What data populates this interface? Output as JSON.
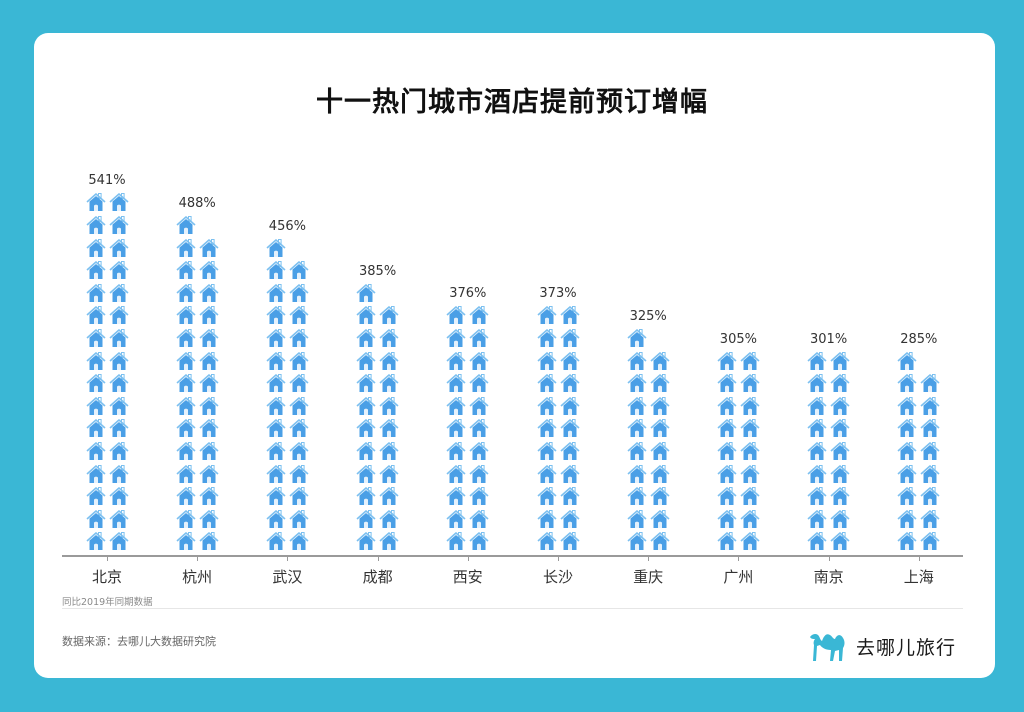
{
  "page": {
    "title": "十一热门城市酒店提前预订增幅",
    "note": "同比2019年同期数据",
    "source": "数据来源：去哪儿大数据研究院",
    "brand": "去哪儿旅行",
    "colors": {
      "background": "#3ab7d5",
      "card": "#ffffff",
      "house": "#4a9fe6",
      "house_roof": "#7cc0f0",
      "axis": "#9a9a9a",
      "logo_camel": "#3ab7d5"
    }
  },
  "chart_data": {
    "type": "bar",
    "subtype": "pictogram",
    "title": "十一热门城市酒店提前预订增幅",
    "xlabel": "",
    "ylabel": "",
    "categories": [
      "北京",
      "杭州",
      "武汉",
      "成都",
      "西安",
      "长沙",
      "重庆",
      "广州",
      "南京",
      "上海"
    ],
    "values": [
      541,
      488,
      456,
      385,
      376,
      373,
      325,
      305,
      301,
      285
    ],
    "value_labels": [
      "541%",
      "488%",
      "456%",
      "385%",
      "376%",
      "373%",
      "325%",
      "305%",
      "301%",
      "285%"
    ],
    "icon_counts": [
      32,
      29,
      27,
      23,
      22,
      22,
      19,
      18,
      18,
      17
    ],
    "icon": "house-icon",
    "unit": "%",
    "grid": false,
    "legend": null,
    "annotations": [
      "同比2019年同期数据"
    ]
  }
}
